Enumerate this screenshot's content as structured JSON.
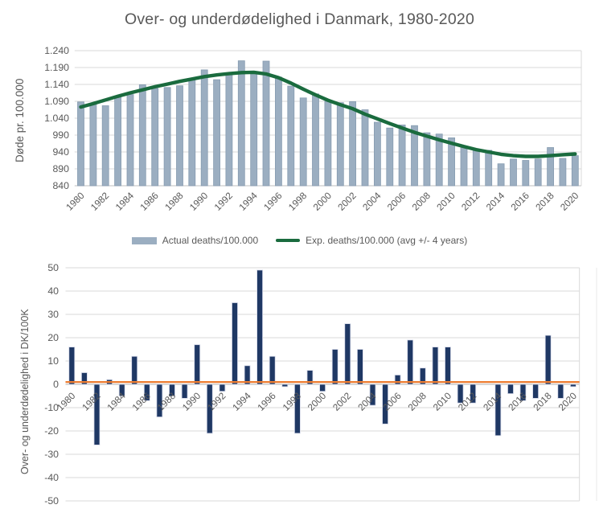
{
  "title": "Over- og underdødelighed i Danmark, 1980-2020",
  "colors": {
    "actual_bar": "#9BAEC1",
    "actual_bar_border": "#879CB1",
    "expected_line": "#1A6B3E",
    "diff_bar": "#1F3864",
    "diff_bar_border": "#D5D9E8",
    "threshold_line": "#ED7D31",
    "gridline": "#D9D9D9",
    "axis_line": "#BFBFBF",
    "text": "#595959"
  },
  "legend": {
    "actual_label": "Actual deaths/100.000",
    "expected_label": "Exp. deaths/100.000 (avg +/- 4 years)"
  },
  "chart_data": [
    {
      "type": "bar",
      "name": "mortality-levels",
      "title": "Over- og underdødelighed i Danmark, 1980-2020",
      "xlabel": "",
      "ylabel": "Døde pr. 100.000",
      "ylim": [
        840,
        1240
      ],
      "grid": true,
      "legend_position": "bottom",
      "ytick_values": [
        840,
        890,
        940,
        990,
        1040,
        1090,
        1140,
        1190,
        1240
      ],
      "ytick_labels": [
        "840",
        "890",
        "940",
        "990",
        "1.040",
        "1.090",
        "1.140",
        "1.190",
        "1.240"
      ],
      "xtick_labels": [
        "1980",
        "1982",
        "1984",
        "1986",
        "1988",
        "1990",
        "1992",
        "1994",
        "1996",
        "1998",
        "2000",
        "2002",
        "2004",
        "2006",
        "2008",
        "2010",
        "2012",
        "2014",
        "2016",
        "2018",
        "2020"
      ],
      "categories": [
        1980,
        1981,
        1982,
        1983,
        1984,
        1985,
        1986,
        1987,
        1988,
        1989,
        1990,
        1991,
        1992,
        1993,
        1994,
        1995,
        1996,
        1997,
        1998,
        1999,
        2000,
        2001,
        2002,
        2003,
        2004,
        2005,
        2006,
        2007,
        2008,
        2009,
        2010,
        2011,
        2012,
        2013,
        2014,
        2015,
        2016,
        2017,
        2018,
        2019,
        2020
      ],
      "series": [
        {
          "name": "Actual deaths/100.000",
          "type": "bar",
          "values": [
            1088,
            1083,
            1077,
            1104,
            1110,
            1139,
            1128,
            1131,
            1136,
            1153,
            1183,
            1154,
            1170,
            1210,
            1176,
            1209,
            1162,
            1135,
            1100,
            1112,
            1090,
            1086,
            1089,
            1065,
            1028,
            1011,
            1020,
            1018,
            997,
            993,
            982,
            955,
            947,
            945,
            905,
            919,
            915,
            919,
            953,
            921,
            929
          ]
        },
        {
          "name": "Exp. deaths/100.000 (avg +/- 4 years)",
          "type": "line",
          "values": [
            1073,
            1083,
            1094,
            1105,
            1115,
            1124,
            1133,
            1141,
            1149,
            1156,
            1163,
            1168,
            1172,
            1175,
            1176,
            1171,
            1160,
            1144,
            1126,
            1109,
            1093,
            1080,
            1068,
            1052,
            1038,
            1024,
            1011,
            998,
            987,
            976,
            966,
            956,
            947,
            940,
            933,
            929,
            927,
            927,
            929,
            932,
            934
          ]
        }
      ]
    },
    {
      "type": "bar",
      "name": "excess-mortality",
      "title": "",
      "xlabel": "",
      "ylabel": "Over- og underdødelighed  i DK/100K",
      "ylim": [
        -50,
        50
      ],
      "grid": true,
      "threshold": 1,
      "ytick_values": [
        50,
        40,
        30,
        20,
        10,
        0,
        -10,
        -20,
        -30,
        -40,
        -50
      ],
      "ytick_labels": [
        "50",
        "40",
        "30",
        "20",
        "10",
        "0",
        "-10",
        "-20",
        "-30",
        "-40",
        "-50"
      ],
      "xtick_labels": [
        "1980",
        "1982",
        "1984",
        "1986",
        "1988",
        "1990",
        "1992",
        "1994",
        "1996",
        "1998",
        "2000",
        "2002",
        "2004",
        "2006",
        "2008",
        "2010",
        "2012",
        "2014",
        "2016",
        "2018",
        "2020"
      ],
      "categories": [
        1980,
        1981,
        1982,
        1983,
        1984,
        1985,
        1986,
        1987,
        1988,
        1989,
        1990,
        1991,
        1992,
        1993,
        1994,
        1995,
        1996,
        1997,
        1998,
        1999,
        2000,
        2001,
        2002,
        2003,
        2004,
        2005,
        2006,
        2007,
        2008,
        2009,
        2010,
        2011,
        2012,
        2013,
        2014,
        2015,
        2016,
        2017,
        2018,
        2019,
        2020
      ],
      "values": [
        16,
        5,
        -26,
        2,
        -5,
        12,
        -7,
        -14,
        -5,
        -6,
        17,
        -21,
        -3,
        35,
        8,
        49,
        12,
        -1,
        -21,
        6,
        -3,
        15,
        26,
        15,
        -9,
        -17,
        4,
        19,
        7,
        16,
        16,
        -8,
        -8,
        0,
        -22,
        -4,
        -7,
        -6,
        21,
        -6,
        -1
      ]
    }
  ]
}
